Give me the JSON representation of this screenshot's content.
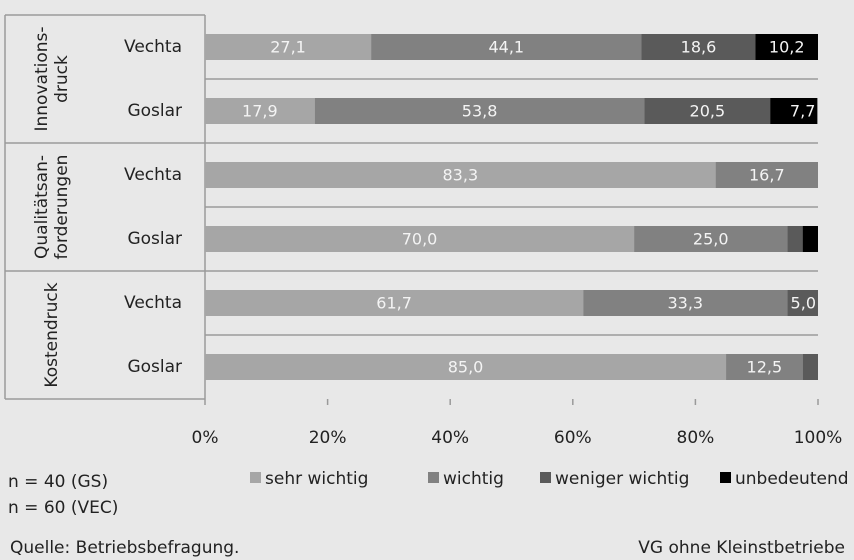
{
  "chart_data": {
    "type": "stacked-bar-horizontal",
    "groups": [
      [
        "Innovations-",
        "druck"
      ],
      [
        "Qualitätsan-",
        "forderungen"
      ],
      [
        "Kostendruck"
      ]
    ],
    "categories": [
      "Vechta",
      "Goslar",
      "Vechta",
      "Goslar",
      "Vechta",
      "Goslar"
    ],
    "series": [
      {
        "name": "sehr wichtig",
        "color": "#a6a6a6",
        "values": [
          27.1,
          17.9,
          83.3,
          70.0,
          61.7,
          85.0
        ],
        "value_labels": [
          "27,1",
          "17,9",
          "83,3",
          "70,0",
          "61,7",
          "85,0"
        ]
      },
      {
        "name": "wichtig",
        "color": "#818181",
        "values": [
          44.1,
          53.8,
          16.7,
          25.0,
          33.3,
          12.5
        ],
        "value_labels": [
          "44,1",
          "53,8",
          "16,7",
          "25,0",
          "33,3",
          "12,5"
        ]
      },
      {
        "name": "weniger wichtig",
        "color": "#5a5a5a",
        "values": [
          18.6,
          20.5,
          null,
          2.5,
          5.0,
          2.5
        ],
        "value_labels": [
          "18,6",
          "20,5",
          null,
          null,
          "5,0",
          null
        ]
      },
      {
        "name": "unbedeutend",
        "color": "#000000",
        "values": [
          10.2,
          7.7,
          null,
          2.5,
          null,
          null
        ],
        "value_labels": [
          "10,2",
          "7,7",
          null,
          null,
          null,
          null
        ]
      }
    ],
    "xlim": [
      0,
      100
    ],
    "xticks": [
      {
        "value": 0,
        "label": "0%"
      },
      {
        "value": 20,
        "label": "20%"
      },
      {
        "value": 40,
        "label": "40%"
      },
      {
        "value": 60,
        "label": "60%"
      },
      {
        "value": 80,
        "label": "80%"
      },
      {
        "value": 100,
        "label": "100%"
      }
    ],
    "notes": [
      "n =  40 (GS)",
      "n =  60 (VEC)"
    ],
    "source": "Quelle: Betriebsbefragung.",
    "footnote": "VG ohne Kleinstbetriebe"
  }
}
